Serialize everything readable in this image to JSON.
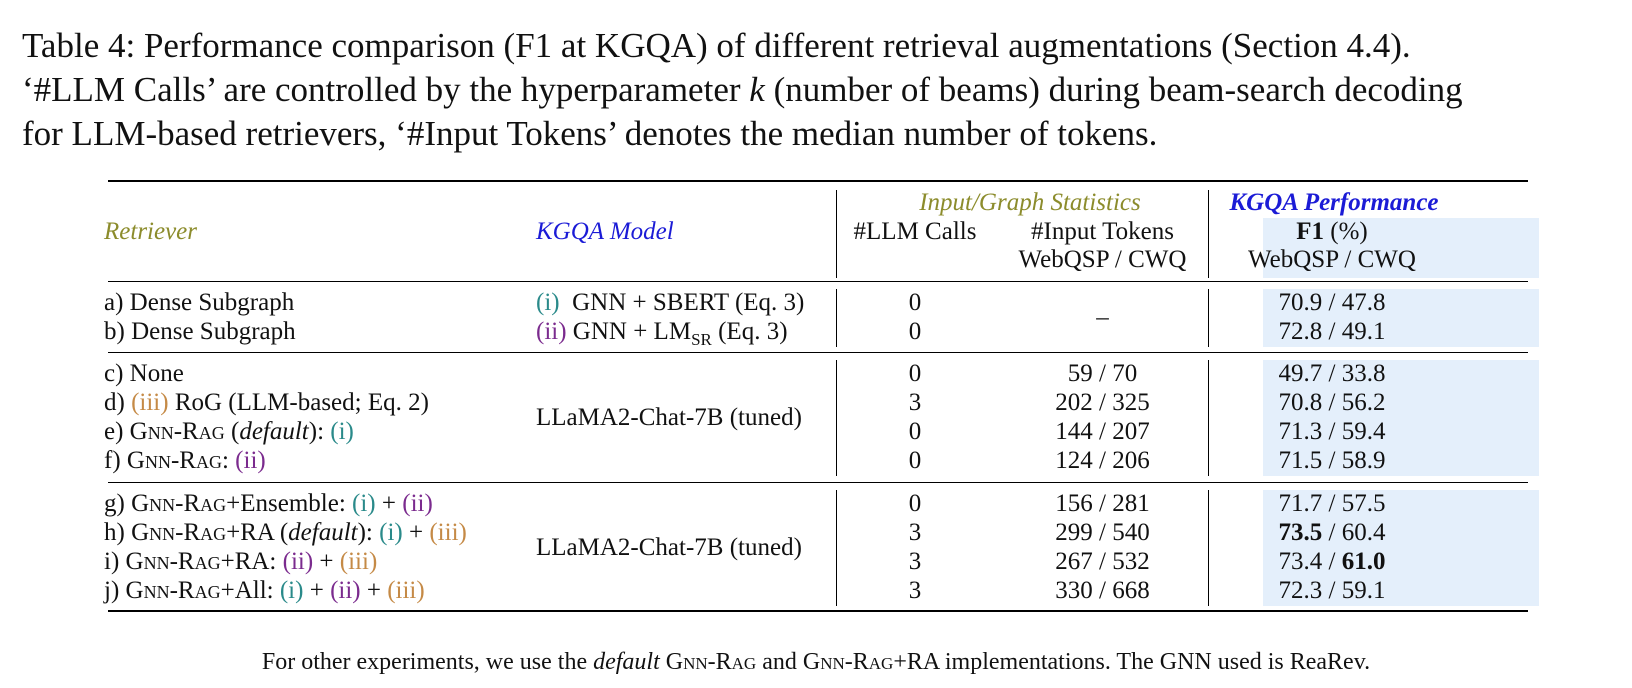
{
  "caption": {
    "line1": "Table 4: Performance comparison (F1 at KGQA) of different retrieval augmentations (Section 4.4).",
    "line2_pre": "‘#LLM Calls’ are controlled by the hyperparameter ",
    "line2_k": "k",
    "line2_post": " (number of beams) during beam-search decoding",
    "line3": "for LLM-based retrievers, ‘#Input Tokens’ denotes the median number of tokens."
  },
  "header": {
    "retriever": "Retriever",
    "kgqa_model": "KGQA Model",
    "input_graph_stats": "Input/Graph Statistics",
    "llm_calls": "#LLM Calls",
    "input_tokens": "#Input Tokens",
    "input_tokens_sub": "WebQSP / CWQ",
    "kgqa_performance": "KGQA Performance",
    "f1": "F1",
    "f1_unit": " (%)",
    "f1_sub": "WebQSP / CWQ"
  },
  "rows": [
    {
      "id": "a",
      "label": "a) Dense Subgraph",
      "llm": "0",
      "perf": "70.9 / 47.8"
    },
    {
      "id": "b",
      "label": "b) Dense Subgraph",
      "llm": "0",
      "perf": "72.8 / 49.1"
    },
    {
      "id": "c",
      "label": "c) None",
      "llm": "0",
      "tokens": "59 / 70",
      "perf": "49.7 / 33.8"
    },
    {
      "id": "d",
      "llm": "3",
      "tokens": "202 / 325",
      "perf": "70.8 / 56.2"
    },
    {
      "id": "e",
      "llm": "0",
      "tokens": "144 / 207",
      "perf": "71.3 / 59.4"
    },
    {
      "id": "f",
      "llm": "0",
      "tokens": "124 / 206",
      "perf": "71.5 / 58.9"
    },
    {
      "id": "g",
      "llm": "0",
      "tokens": "156 / 281",
      "perf": "71.7 / 57.5"
    },
    {
      "id": "h",
      "llm": "3",
      "tokens": "299 / 540",
      "perf_bold": "73.5",
      "perf_rest": " / 60.4"
    },
    {
      "id": "i",
      "llm": "3",
      "tokens": "267 / 532",
      "perf_pre": "73.4 / ",
      "perf_bold": "61.0"
    },
    {
      "id": "j",
      "llm": "3",
      "tokens": "330 / 668",
      "perf": "72.3 / 59.1"
    }
  ],
  "group1": {
    "model_a_mark": "(i)",
    "model_a_text": "GNN + SBERT (Eq. 3)",
    "model_b_mark": "(ii)",
    "model_b_pre": " GNN + LM",
    "model_b_sub": "SR",
    "model_b_post": " (Eq. 3)",
    "tokens": "–"
  },
  "group2_model": "LLaMA2-Chat-7B (tuned)",
  "group3_model": "LLaMA2-Chat-7B (tuned)",
  "labels": {
    "d_pre": "d) ",
    "d_mark": "(iii)",
    "d_post": " RoG (LLM-based; Eq. 2)",
    "gnnrag": "Gnn-Rag",
    "e_pre": "e) ",
    "e_default": "default",
    "e_mark": "(i)",
    "f_pre": "f) ",
    "f_mark": "(ii)",
    "g_pre": "g) ",
    "g_suffix": "+Ensemble: ",
    "g_m1": "(i)",
    "g_m2": "(ii)",
    "h_pre": "h) ",
    "h_suffix": "+RA (",
    "h_default": "default",
    "h_m1": "(i)",
    "h_m2": "(iii)",
    "i_pre": "i) ",
    "i_suffix": "+RA: ",
    "i_m1": "(ii)",
    "i_m2": "(iii)",
    "j_pre": "j) ",
    "j_suffix": "+All: ",
    "j_m1": "(i)",
    "j_m2": "(ii)",
    "j_m3": "(iii)",
    "plus": " + ",
    "colon": ": ",
    "close_colon": "): "
  },
  "footnote": {
    "pre": "For other experiments, we use the ",
    "default": "default",
    "mid1": " ",
    "gnnrag1": "Gnn-Rag",
    "and": " and ",
    "gnnrag2": "Gnn-Rag",
    "post": "+RA implementations. The GNN used is ReaRev."
  },
  "colors": {
    "shade": "#e4effb",
    "olive": "#8c8c2c",
    "blue": "#1b1bd6",
    "teal": "#2a8a8a",
    "purple": "#7b2b8e",
    "brown": "#c58a46"
  }
}
